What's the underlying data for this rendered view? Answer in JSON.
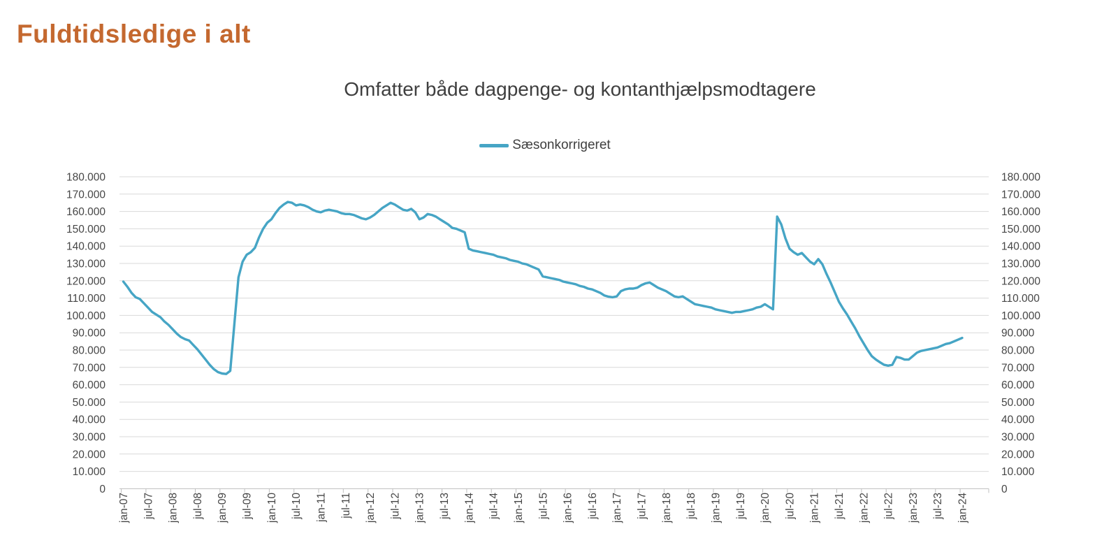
{
  "page": {
    "title": "Fuldtidsledige i alt"
  },
  "colors": {
    "title": "#C4682F",
    "subtitle": "#3F3F3F",
    "axis_text": "#464646",
    "grid": "#D9D9D9",
    "axis": "#BFBFBF",
    "line": "#46A5C5"
  },
  "chart_data": {
    "type": "line",
    "title": "Omfatter både dagpenge- og kontanthjælpsmodtagere",
    "legend_position": "top",
    "grid": true,
    "legend": [
      {
        "label": "Sæsonkorrigeret",
        "color": "#46A5C5"
      }
    ],
    "x_axis": {
      "unit": "month",
      "start": "jan-07",
      "end": "jan-24",
      "tick_interval_months": 6,
      "tick_labels": [
        "jan-07",
        "jul-07",
        "jan-08",
        "jul-08",
        "jan-09",
        "jul-09",
        "jan-10",
        "jul-10",
        "jan-11",
        "jul-11",
        "jan-12",
        "jul-12",
        "jan-13",
        "jul-13",
        "jan-14",
        "jul-14",
        "jan-15",
        "jul-15",
        "jan-16",
        "jul-16",
        "jan-17",
        "jul-17",
        "jan-18",
        "jul-18",
        "jan-19",
        "jul-19",
        "jan-20",
        "jul-20",
        "jan-21",
        "jul-21",
        "jan-22",
        "jul-22",
        "jan-23",
        "jul-23",
        "jan-24"
      ]
    },
    "y_axis": {
      "min": 0,
      "max": 180000,
      "step": 10000,
      "sides": [
        "left",
        "right"
      ],
      "tick_labels": [
        "0",
        "10.000",
        "20.000",
        "30.000",
        "40.000",
        "50.000",
        "60.000",
        "70.000",
        "80.000",
        "90.000",
        "100.000",
        "110.000",
        "120.000",
        "130.000",
        "140.000",
        "150.000",
        "160.000",
        "170.000",
        "180.000"
      ]
    },
    "series": [
      {
        "name": "Sæsonkorrigeret",
        "color": "#46A5C5",
        "first_month": "jan-07",
        "values": [
          119500,
          116500,
          113000,
          110500,
          109500,
          107000,
          104500,
          102000,
          100500,
          99000,
          96500,
          94500,
          92000,
          89500,
          87500,
          86300,
          85500,
          83000,
          80500,
          77500,
          74500,
          71500,
          69000,
          67300,
          66500,
          66200,
          68000,
          95000,
          122000,
          131000,
          135000,
          136500,
          139000,
          145000,
          150000,
          153500,
          155500,
          159000,
          162000,
          164000,
          165500,
          165000,
          163500,
          164000,
          163500,
          162500,
          161000,
          160000,
          159500,
          160500,
          161000,
          160500,
          160000,
          159000,
          158500,
          158500,
          158000,
          157000,
          156000,
          155500,
          156500,
          158000,
          160000,
          162000,
          163500,
          165000,
          164000,
          162500,
          161000,
          160500,
          161500,
          159500,
          155500,
          156500,
          158500,
          158000,
          157000,
          155500,
          154000,
          152500,
          150500,
          150000,
          149000,
          148000,
          138500,
          137500,
          137000,
          136500,
          136000,
          135500,
          135000,
          134000,
          133500,
          133000,
          132000,
          131500,
          131000,
          130000,
          129500,
          128500,
          127500,
          126500,
          122500,
          122000,
          121500,
          121000,
          120500,
          119500,
          119000,
          118500,
          118000,
          117000,
          116500,
          115500,
          115000,
          114000,
          113000,
          111500,
          110800,
          110500,
          111000,
          114000,
          115000,
          115500,
          115500,
          116000,
          117500,
          118500,
          119000,
          117500,
          116000,
          115000,
          114000,
          112500,
          111000,
          110500,
          111000,
          109500,
          108000,
          106500,
          106000,
          105500,
          105000,
          104500,
          103500,
          103000,
          102500,
          102000,
          101500,
          102000,
          102000,
          102500,
          103000,
          103500,
          104500,
          105000,
          106500,
          105000,
          103500,
          157000,
          152500,
          144500,
          138500,
          136500,
          135000,
          136000,
          133500,
          131000,
          129500,
          132500,
          129500,
          124000,
          119000,
          113500,
          108000,
          104000,
          100500,
          96500,
          92500,
          88000,
          84000,
          80000,
          76500,
          74500,
          73000,
          71500,
          71000,
          71500,
          76000,
          75500,
          74500,
          74500,
          76500,
          78500,
          79500,
          80000,
          80500,
          81000,
          81500,
          82500,
          83500,
          84000,
          85000,
          86000,
          87000
        ]
      }
    ]
  }
}
